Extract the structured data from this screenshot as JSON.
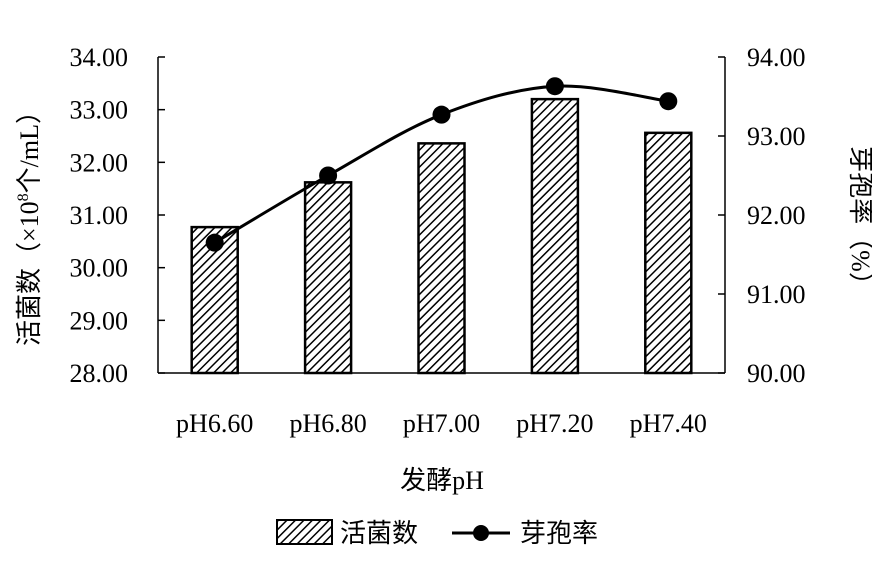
{
  "chart_data": {
    "type": "bar+line",
    "categories": [
      "pH6.60",
      "pH6.80",
      "pH7.00",
      "pH7.20",
      "pH7.40"
    ],
    "series": [
      {
        "name": "活菌数",
        "type": "bar",
        "axis": "left",
        "pattern": "diagonal-hatch",
        "values": [
          30.77,
          31.62,
          32.36,
          33.2,
          32.56
        ]
      },
      {
        "name": "芽孢率",
        "type": "line",
        "axis": "right",
        "marker": "filled-circle",
        "smooth": true,
        "values": [
          91.65,
          92.5,
          93.27,
          93.63,
          93.44
        ]
      }
    ],
    "xlabel": "发酵pH",
    "ylabel_left_prefix": "活菌数（×10",
    "ylabel_left_sup": "8",
    "ylabel_left_suffix": "个/mL）",
    "ylabel_right": "芽孢率（%）",
    "ylim_left": [
      28.0,
      34.0
    ],
    "ylim_right": [
      90.0,
      94.0
    ],
    "yticks_left": [
      "28.00",
      "29.00",
      "30.00",
      "31.00",
      "32.00",
      "33.00",
      "34.00"
    ],
    "yticks_right": [
      "90.00",
      "91.00",
      "92.00",
      "93.00",
      "94.00"
    ],
    "grid": false,
    "legend_position": "bottom",
    "colors": {
      "ink": "#000000",
      "bar_fill": "#ffffff",
      "background": "#ffffff"
    }
  }
}
